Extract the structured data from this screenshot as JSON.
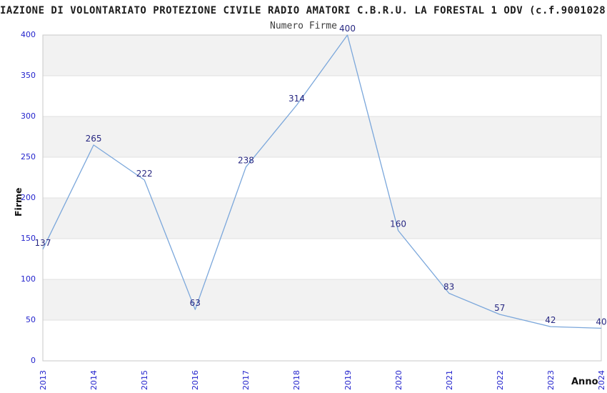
{
  "title": "IAZIONE DI VOLONTARIATO PROTEZIONE CIVILE RADIO AMATORI C.B.R.U. LA FORESTAL 1 ODV (c.f.9001028",
  "subtitle": "Numero Firme",
  "chart_data": {
    "type": "line",
    "title": "Numero Firme",
    "x": [
      "2013",
      "2014",
      "2015",
      "2016",
      "2017",
      "2018",
      "2019",
      "2020",
      "2021",
      "2022",
      "2023",
      "2024"
    ],
    "series": [
      {
        "name": "Numero Firme",
        "values": [
          137,
          265,
          222,
          63,
          238,
          314,
          400,
          160,
          83,
          57,
          42,
          40
        ]
      }
    ],
    "xlabel": "Anno",
    "ylabel": "Firme",
    "ylim": [
      0,
      400
    ],
    "ytick_step": 50,
    "legend": "none",
    "grid": "alternating horizontal bands with gridlines every 50",
    "colors": {
      "line": "#7ba7db",
      "tick_labels": "#2424cd",
      "point_labels": "#282882",
      "band": "#f2f2f2",
      "gridline": "#e0e0e0",
      "plot_border": "#c8c8c8"
    }
  }
}
